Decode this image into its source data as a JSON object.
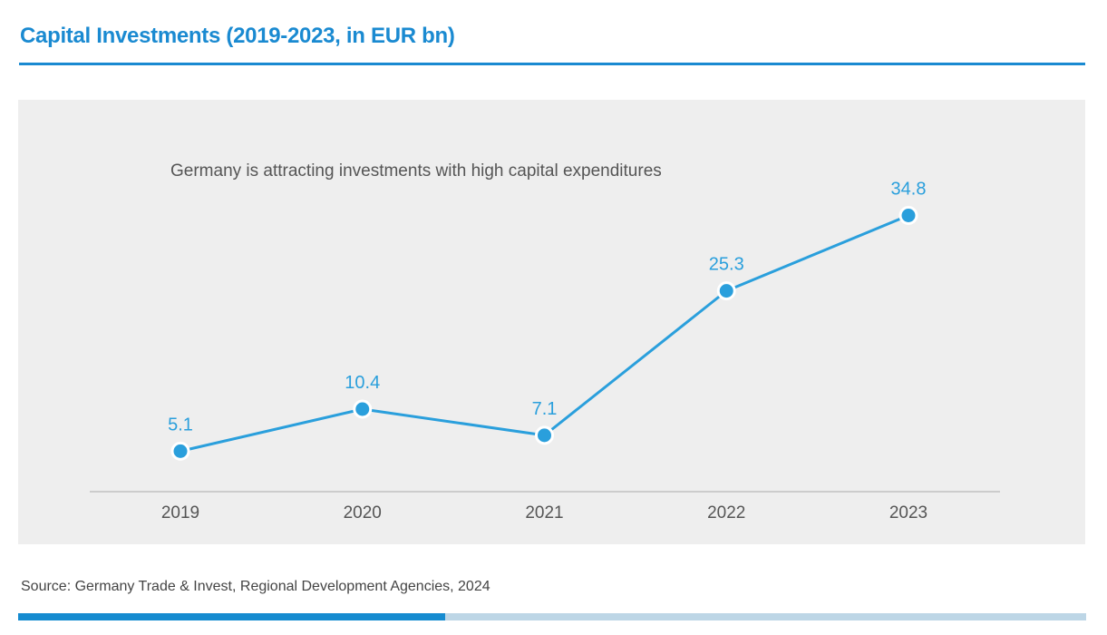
{
  "header": {
    "title": "Capital Investments (2019-2023, in EUR bn)"
  },
  "footer": {
    "source": "Source: Germany Trade & Invest, Regional Development Agencies, 2024"
  },
  "colors": {
    "brand": "#1a8ad1",
    "line": "#2a9fdc",
    "panel": "#eeeeee",
    "text": "#555555",
    "footer_bar_dark": "#158bd0",
    "footer_bar_light": "#bdd6e6"
  },
  "chart_data": {
    "type": "line",
    "title": "Capital Investments (2019-2023, in EUR bn)",
    "subtitle": "Germany is attracting investments with high capital expenditures",
    "xlabel": "",
    "ylabel": "",
    "categories": [
      "2019",
      "2020",
      "2021",
      "2022",
      "2023"
    ],
    "series": [
      {
        "name": "Capital Investments (EUR bn)",
        "values": [
          5.1,
          10.4,
          7.1,
          25.3,
          34.8
        ],
        "labels": [
          "5.1",
          "10.4",
          "7.1",
          "25.3",
          "34.8"
        ]
      }
    ],
    "ylim": [
      0,
      40
    ],
    "grid": false,
    "legend": "none",
    "data_labels": true
  }
}
